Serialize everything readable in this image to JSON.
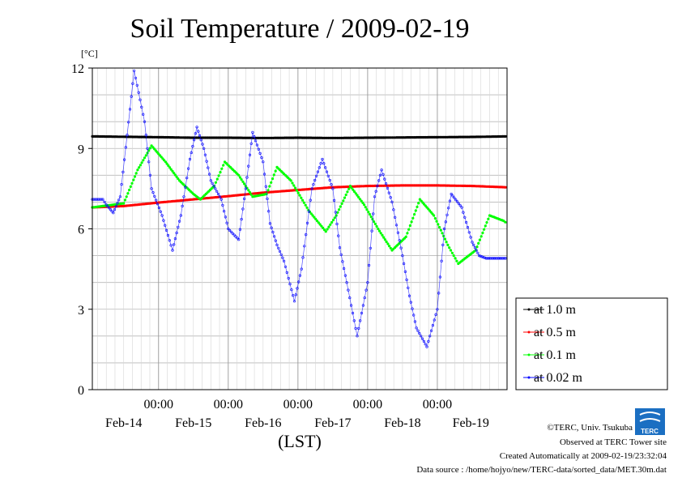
{
  "chart_data": {
    "type": "line",
    "title": "Soil Temperature / 2009-02-19",
    "ylabel": "[°C]",
    "xlabel": "(LST)",
    "ylim": [
      0,
      12
    ],
    "yticks": [
      "0",
      "3",
      "6",
      "9",
      "12"
    ],
    "xrange_days": [
      13.55,
      19.5
    ],
    "xticks": [
      {
        "pos": 14.5,
        "time": "00:00",
        "date": "Feb-14"
      },
      {
        "pos": 15.5,
        "time": "00:00",
        "date": "Feb-15"
      },
      {
        "pos": 16.5,
        "time": "00:00",
        "date": "Feb-16"
      },
      {
        "pos": 17.5,
        "time": "00:00",
        "date": "Feb-17"
      },
      {
        "pos": 18.5,
        "time": "00:00",
        "date": "Feb-18"
      },
      {
        "pos": "",
        "time": "",
        "date": "Feb-19"
      }
    ],
    "grid": true,
    "legend_position": "right",
    "series": [
      {
        "name": "at 1.0 m",
        "color": "#000000",
        "x": [
          13.55,
          14.5,
          15.0,
          15.5,
          16.0,
          16.5,
          17.0,
          17.5,
          18.0,
          18.5,
          19.0,
          19.5
        ],
        "y": [
          9.45,
          9.42,
          9.4,
          9.4,
          9.39,
          9.4,
          9.39,
          9.4,
          9.41,
          9.42,
          9.43,
          9.45
        ]
      },
      {
        "name": "at 0.5 m",
        "color": "#ff0000",
        "x": [
          13.55,
          14.0,
          14.5,
          15.0,
          15.5,
          16.0,
          16.5,
          17.0,
          17.5,
          18.0,
          18.5,
          19.0,
          19.5
        ],
        "y": [
          6.8,
          6.85,
          6.98,
          7.1,
          7.22,
          7.35,
          7.45,
          7.55,
          7.6,
          7.62,
          7.62,
          7.6,
          7.55
        ]
      },
      {
        "name": "at 0.1 m",
        "color": "#00ff00",
        "x": [
          13.55,
          13.85,
          14.0,
          14.2,
          14.4,
          14.6,
          14.8,
          15.0,
          15.1,
          15.3,
          15.45,
          15.65,
          15.85,
          16.05,
          16.2,
          16.4,
          16.65,
          16.9,
          17.05,
          17.25,
          17.45,
          17.65,
          17.85,
          18.05,
          18.25,
          18.45,
          18.65,
          18.8,
          19.05,
          19.25,
          19.45,
          19.5
        ],
        "y": [
          6.8,
          6.9,
          6.95,
          8.2,
          9.1,
          8.5,
          7.8,
          7.3,
          7.1,
          7.6,
          8.5,
          8.0,
          7.2,
          7.3,
          8.3,
          7.8,
          6.7,
          5.9,
          6.5,
          7.6,
          6.9,
          6.0,
          5.2,
          5.7,
          7.1,
          6.5,
          5.4,
          4.7,
          5.2,
          6.5,
          6.3,
          6.2
        ]
      },
      {
        "name": "at 0.02 m",
        "color": "#0000ff",
        "x": [
          13.55,
          13.7,
          13.75,
          13.85,
          13.95,
          14.05,
          14.15,
          14.3,
          14.4,
          14.55,
          14.7,
          14.82,
          14.95,
          15.05,
          15.15,
          15.25,
          15.4,
          15.5,
          15.65,
          15.75,
          15.85,
          16.0,
          16.1,
          16.2,
          16.3,
          16.45,
          16.55,
          16.7,
          16.85,
          17.0,
          17.1,
          17.2,
          17.35,
          17.5,
          17.6,
          17.7,
          17.85,
          18.0,
          18.1,
          18.2,
          18.35,
          18.5,
          18.6,
          18.7,
          18.85,
          19.0,
          19.1,
          19.2,
          19.3,
          19.5
        ],
        "y": [
          7.1,
          7.1,
          6.9,
          6.6,
          7.2,
          9.5,
          11.9,
          10.0,
          7.5,
          6.5,
          5.2,
          6.5,
          8.6,
          9.8,
          9.0,
          7.8,
          7.1,
          6.0,
          5.6,
          7.5,
          9.6,
          8.5,
          6.2,
          5.4,
          4.8,
          3.3,
          4.5,
          7.5,
          8.6,
          7.5,
          5.3,
          4.0,
          2.0,
          4.0,
          7.2,
          8.2,
          7.0,
          5.0,
          3.5,
          2.3,
          1.6,
          3.0,
          6.0,
          7.3,
          6.8,
          5.5,
          5.0,
          4.9,
          4.9,
          4.9
        ]
      }
    ]
  },
  "credits": {
    "copyright": "©TERC, Univ. Tsukuba",
    "observed": "Observed at TERC Tower site",
    "created": "Created Automatically at 2009-02-19/23:32:04",
    "source": "Data source : /home/hojyo/new/TERC-data/sorted_data/MET.30m.dat",
    "logo_text": "TERC"
  }
}
